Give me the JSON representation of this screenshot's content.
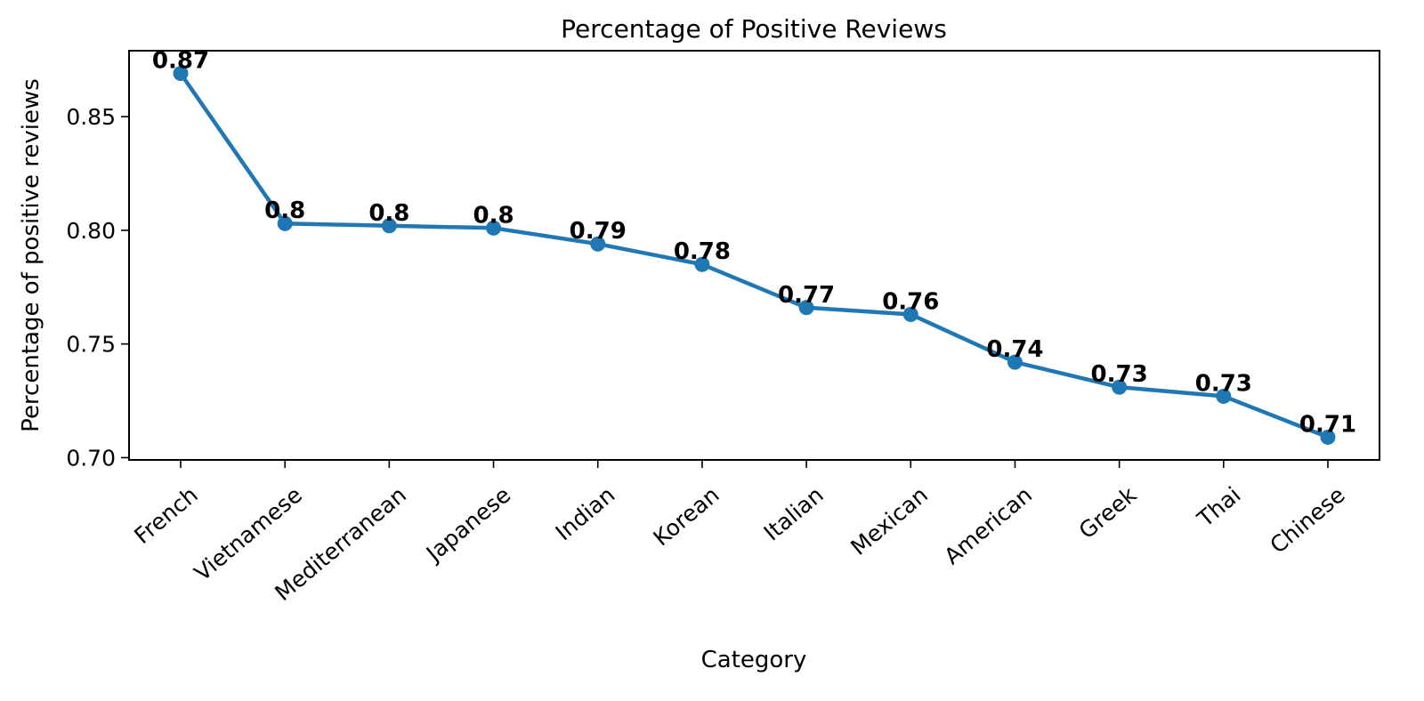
{
  "chart_data": {
    "type": "line",
    "title": "Percentage of Positive Reviews",
    "xlabel": "Category",
    "ylabel": "Percentage of positive reviews",
    "categories": [
      "French",
      "Vietnamese",
      "Mediterranean",
      "Japanese",
      "Indian",
      "Korean",
      "Italian",
      "Mexican",
      "American",
      "Greek",
      "Thai",
      "Chinese"
    ],
    "values": [
      0.869,
      0.803,
      0.802,
      0.801,
      0.794,
      0.785,
      0.766,
      0.763,
      0.742,
      0.731,
      0.727,
      0.709
    ],
    "data_labels": [
      "0.87",
      "0.8",
      "0.8",
      "0.8",
      "0.79",
      "0.78",
      "0.77",
      "0.76",
      "0.74",
      "0.73",
      "0.73",
      "0.71"
    ],
    "yticks": [
      0.7,
      0.75,
      0.8,
      0.85
    ],
    "ytick_labels": [
      "0.70",
      "0.75",
      "0.80",
      "0.85"
    ],
    "ylim": [
      0.699,
      0.879
    ],
    "xtick_rotation": 40,
    "grid": false,
    "legend": "none",
    "colors": {
      "line": "#1f77b4"
    }
  }
}
